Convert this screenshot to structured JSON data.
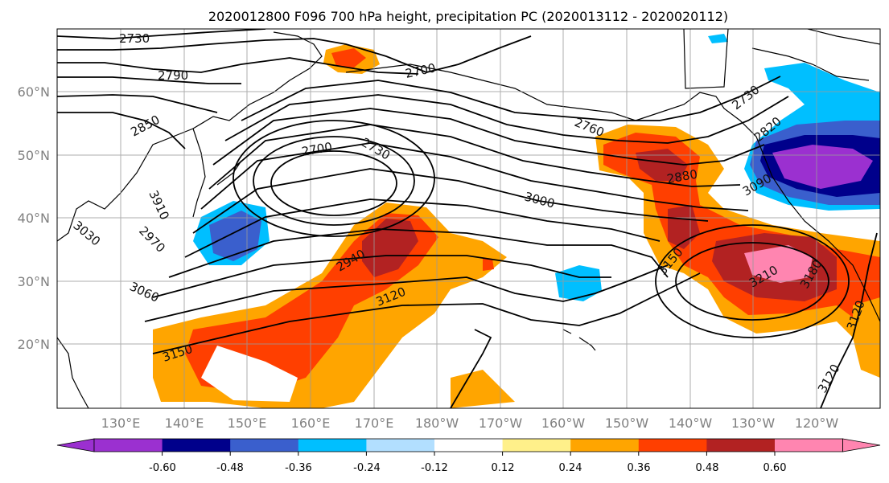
{
  "title": "2020012800 F096 700 hPa height, precipitation PC (2020013112 - 2020020112)",
  "lat_labels": [
    "60°N",
    "50°N",
    "40°N",
    "30°N",
    "20°N"
  ],
  "lon_labels": [
    "130°E",
    "140°E",
    "150°E",
    "160°E",
    "170°E",
    "180°W",
    "170°W",
    "160°W",
    "150°W",
    "140°W",
    "130°W",
    "120°W"
  ],
  "contour_labels": [
    "2730",
    "2790",
    "2700",
    "2850",
    "2700",
    "2730",
    "2760",
    "2730",
    "2880",
    "3000",
    "3910",
    "3030",
    "2970",
    "2940",
    "3060",
    "3120",
    "3150",
    "3150",
    "3210",
    "3180",
    "3120",
    "3120",
    "3090",
    "2820"
  ],
  "colorbar": {
    "ticks": [
      "-0.60",
      "-0.48",
      "-0.36",
      "-0.24",
      "-0.12",
      "0.12",
      "0.24",
      "0.36",
      "0.48",
      "0.60"
    ],
    "colors": [
      "#9b30d0",
      "#00008b",
      "#3a5fcd",
      "#00bfff",
      "#b2dfff",
      "#ffffff",
      "#fff08a",
      "#ffa500",
      "#ff3f00",
      "#b22222",
      "#ff85b0",
      "#ff85b0"
    ]
  }
}
